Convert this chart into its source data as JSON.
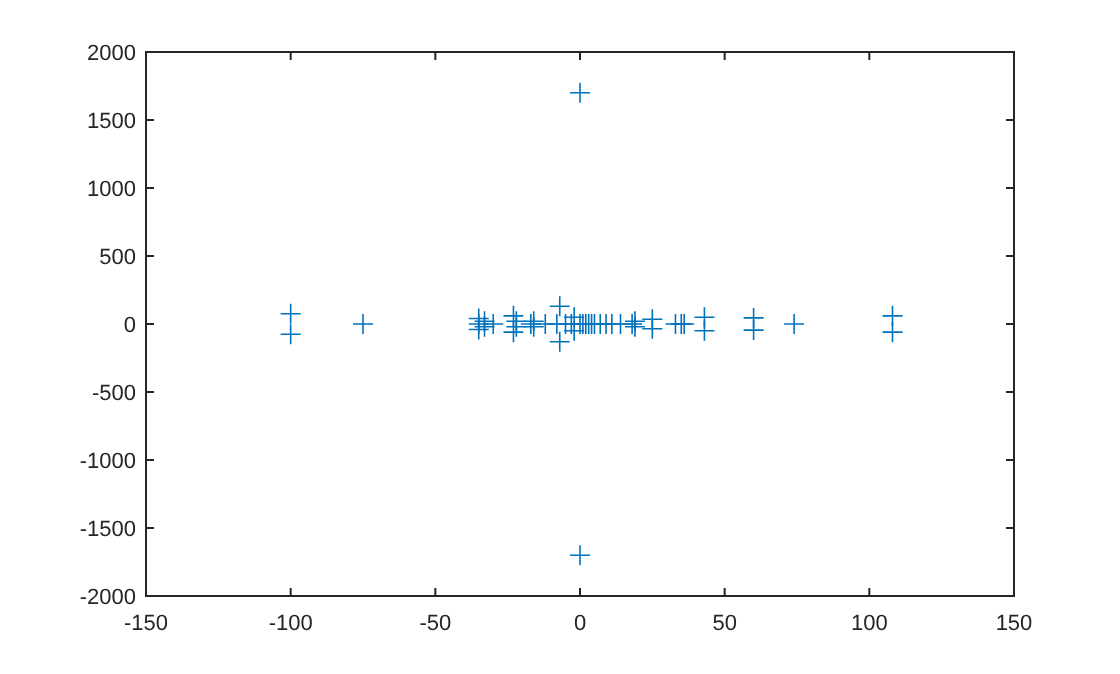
{
  "chart_data": {
    "type": "scatter",
    "marker": "cross",
    "grid": false,
    "xlim": [
      -150,
      150
    ],
    "xticks": [
      -150,
      -100,
      -50,
      0,
      50,
      100,
      150
    ],
    "ylim": [
      -2000,
      2000
    ],
    "yticks": [
      -2000,
      -1500,
      -1000,
      -500,
      0,
      500,
      1000,
      1500,
      2000
    ],
    "series": [
      {
        "color": "#0072bd",
        "x": [
          -100,
          -100,
          -75,
          -35,
          -35,
          -35,
          -33,
          -33,
          -30,
          -23,
          -23,
          -22,
          -22,
          -17,
          -16,
          -16,
          -12,
          -8,
          -7,
          -7,
          -5,
          -3,
          -2,
          -2,
          0,
          0,
          0,
          1,
          2,
          3,
          4,
          5,
          7,
          9,
          11,
          14,
          18,
          19,
          19,
          25,
          25,
          33,
          35,
          36,
          43,
          43,
          60,
          60,
          74,
          108,
          108
        ],
        "values": [
          75,
          -75,
          0,
          40,
          -40,
          0,
          20,
          -20,
          0,
          60,
          -60,
          20,
          -20,
          0,
          20,
          -20,
          0,
          0,
          130,
          -130,
          0,
          0,
          50,
          -50,
          0,
          1700,
          -1700,
          0,
          0,
          0,
          0,
          0,
          0,
          0,
          0,
          0,
          0,
          20,
          -20,
          35,
          -35,
          0,
          0,
          0,
          50,
          -50,
          45,
          -45,
          0,
          60,
          -60
        ]
      }
    ]
  }
}
